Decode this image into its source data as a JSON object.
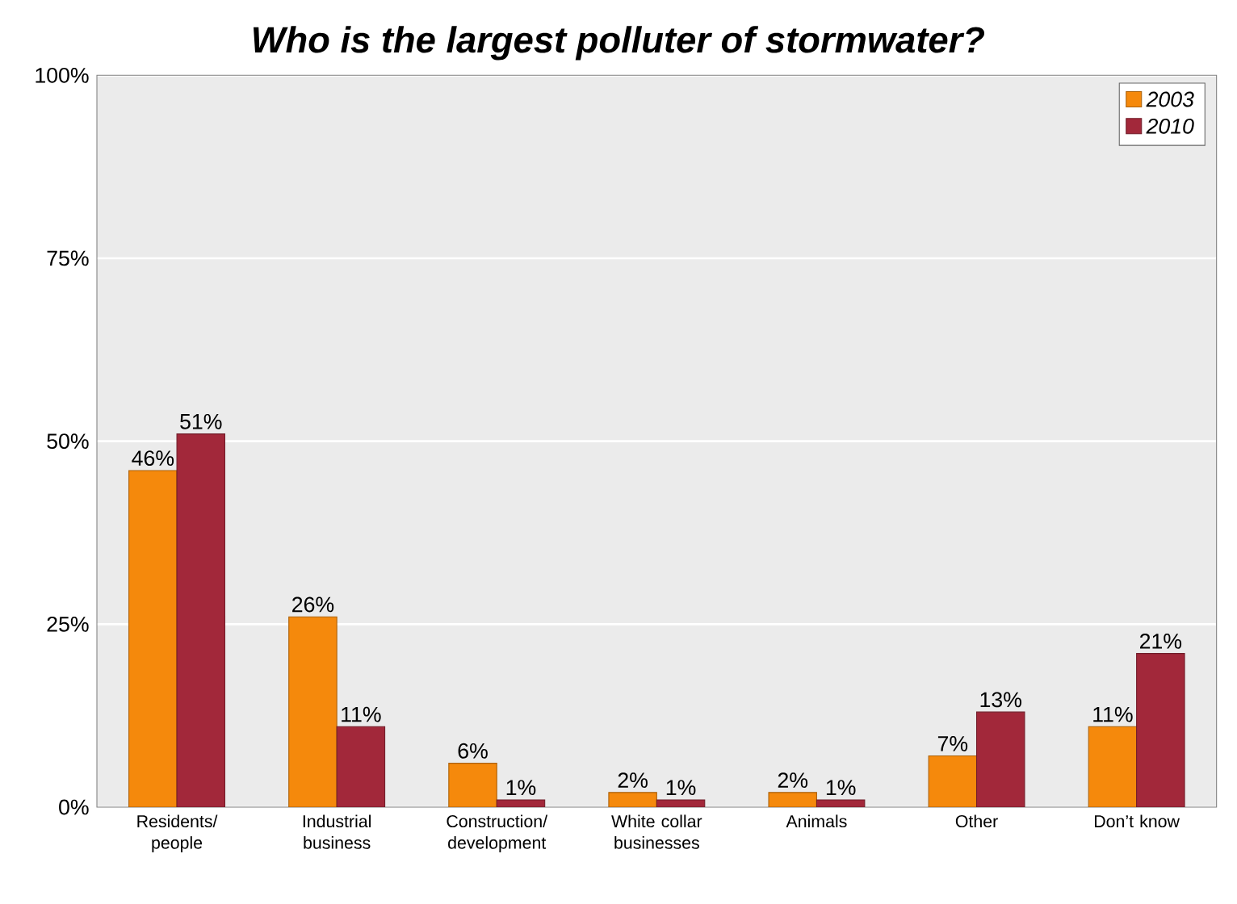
{
  "chart_data": {
    "type": "bar",
    "title": "Who is the largest polluter of stormwater?",
    "categories": [
      "Residents/ people",
      "Industrial business",
      "Construction/ development",
      "White collar businesses",
      "Animals",
      "Other",
      "Don’t know"
    ],
    "series": [
      {
        "name": "2003",
        "color": "#f5890c",
        "values": [
          46,
          26,
          6,
          2,
          2,
          7,
          11
        ],
        "value_labels": [
          "46%",
          "26%",
          "6%",
          "2%",
          "2%",
          "7%",
          "11%"
        ]
      },
      {
        "name": "2010",
        "color": "#a2283a",
        "values": [
          51,
          11,
          1,
          1,
          1,
          13,
          21
        ],
        "value_labels": [
          "51%",
          "11%",
          "1%",
          "1%",
          "1%",
          "13%",
          "21%"
        ]
      }
    ],
    "ylim": [
      0,
      100
    ],
    "yticks": [
      {
        "value": 0,
        "label": "0%"
      },
      {
        "value": 25,
        "label": "25%"
      },
      {
        "value": 50,
        "label": "50%"
      },
      {
        "value": 75,
        "label": "75%"
      },
      {
        "value": 100,
        "label": "100%"
      }
    ],
    "grid": "y",
    "legend": "top right"
  }
}
